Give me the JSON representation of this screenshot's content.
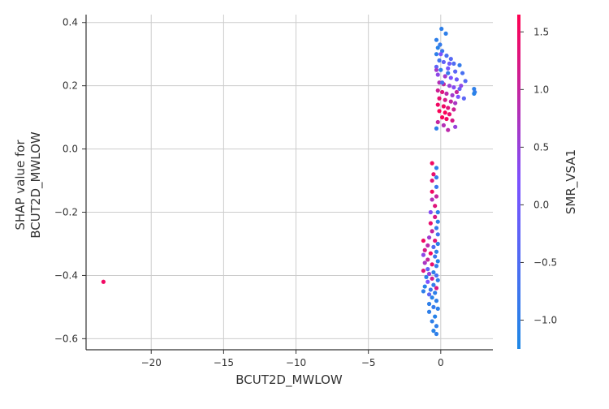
{
  "chart_data": {
    "type": "scatter",
    "title": "",
    "xlabel": "BCUT2D_MWLOW",
    "ylabel_lines": [
      "SHAP value for",
      "BCUT2D_MWLOW"
    ],
    "colorbar_label": "SMR_VSA1",
    "xlim": [
      -24.5,
      3.6
    ],
    "ylim": [
      -0.635,
      0.425
    ],
    "x_ticks": [
      -20,
      -15,
      -10,
      -5,
      0
    ],
    "x_tick_labels": [
      "−20",
      "−15",
      "−10",
      "−5",
      "0"
    ],
    "y_ticks": [
      0.4,
      0.2,
      0.0,
      -0.2,
      -0.4,
      -0.6
    ],
    "y_tick_labels": [
      "0.4",
      "0.2",
      "0.0",
      "−0.2",
      "−0.4",
      "−0.6"
    ],
    "color_range": [
      -1.25,
      1.65
    ],
    "colorbar_ticks": [
      1.5,
      1.0,
      0.5,
      0.0,
      -0.5,
      -1.0
    ],
    "colorbar_tick_labels": [
      "1.5",
      "1.0",
      "0.5",
      "0.0",
      "−0.5",
      "−1.0"
    ],
    "grid": true,
    "colors": {
      "low": "#1E88E5",
      "high": "#FF0051",
      "grid": "#cccccc",
      "axis": "#333333"
    },
    "points": [
      {
        "x": -23.3,
        "y": -0.42,
        "c": 1.5
      },
      {
        "x": 0.05,
        "y": 0.38,
        "c": -1.0
      },
      {
        "x": 0.35,
        "y": 0.365,
        "c": -1.0
      },
      {
        "x": -0.3,
        "y": 0.345,
        "c": -1.0
      },
      {
        "x": -0.05,
        "y": 0.33,
        "c": -0.9
      },
      {
        "x": -0.2,
        "y": 0.32,
        "c": -1.1
      },
      {
        "x": 0.1,
        "y": 0.31,
        "c": -0.8
      },
      {
        "x": -0.3,
        "y": 0.3,
        "c": -1.0
      },
      {
        "x": 0.4,
        "y": 0.295,
        "c": -0.6
      },
      {
        "x": 0.7,
        "y": 0.285,
        "c": -0.4
      },
      {
        "x": -0.1,
        "y": 0.28,
        "c": -0.7
      },
      {
        "x": 0.2,
        "y": 0.275,
        "c": -0.2
      },
      {
        "x": 0.9,
        "y": 0.27,
        "c": -0.5
      },
      {
        "x": 1.3,
        "y": 0.265,
        "c": -0.9
      },
      {
        "x": -0.3,
        "y": 0.26,
        "c": -0.3
      },
      {
        "x": 0.5,
        "y": 0.255,
        "c": 0.1
      },
      {
        "x": 0.0,
        "y": 0.25,
        "c": -1.0
      },
      {
        "x": 1.0,
        "y": 0.245,
        "c": -0.3
      },
      {
        "x": 1.5,
        "y": 0.24,
        "c": -0.6
      },
      {
        "x": -0.2,
        "y": 0.235,
        "c": 0.4
      },
      {
        "x": 0.3,
        "y": 0.23,
        "c": 0.6
      },
      {
        "x": 0.7,
        "y": 0.225,
        "c": 0.2
      },
      {
        "x": 1.1,
        "y": 0.22,
        "c": 0.0
      },
      {
        "x": 1.7,
        "y": 0.215,
        "c": -0.4
      },
      {
        "x": -0.1,
        "y": 0.21,
        "c": 0.8
      },
      {
        "x": 0.2,
        "y": 0.205,
        "c": 1.0
      },
      {
        "x": 0.6,
        "y": 0.2,
        "c": 0.5
      },
      {
        "x": 0.9,
        "y": 0.195,
        "c": 0.3
      },
      {
        "x": 1.3,
        "y": 0.19,
        "c": -0.2
      },
      {
        "x": 2.3,
        "y": 0.19,
        "c": -1.0
      },
      {
        "x": 2.35,
        "y": 0.18,
        "c": -0.9
      },
      {
        "x": 2.3,
        "y": 0.175,
        "c": -1.1
      },
      {
        "x": -0.2,
        "y": 0.185,
        "c": 1.1
      },
      {
        "x": 0.1,
        "y": 0.18,
        "c": 1.3
      },
      {
        "x": 0.4,
        "y": 0.175,
        "c": 0.9
      },
      {
        "x": 0.8,
        "y": 0.17,
        "c": 0.6
      },
      {
        "x": 1.2,
        "y": 0.165,
        "c": 0.2
      },
      {
        "x": 1.6,
        "y": 0.16,
        "c": -0.3
      },
      {
        "x": -0.1,
        "y": 0.16,
        "c": 1.4
      },
      {
        "x": 0.3,
        "y": 0.155,
        "c": 1.2
      },
      {
        "x": 0.7,
        "y": 0.15,
        "c": 1.0
      },
      {
        "x": 1.0,
        "y": 0.145,
        "c": 0.7
      },
      {
        "x": -0.2,
        "y": 0.14,
        "c": 1.5
      },
      {
        "x": 0.2,
        "y": 0.135,
        "c": 1.5
      },
      {
        "x": 0.5,
        "y": 0.13,
        "c": 1.3
      },
      {
        "x": 0.9,
        "y": 0.125,
        "c": 1.1
      },
      {
        "x": -0.1,
        "y": 0.12,
        "c": 1.6
      },
      {
        "x": 0.3,
        "y": 0.115,
        "c": 1.6
      },
      {
        "x": 0.6,
        "y": 0.11,
        "c": 1.4
      },
      {
        "x": 0.1,
        "y": 0.1,
        "c": 1.6
      },
      {
        "x": 0.4,
        "y": 0.095,
        "c": 1.5
      },
      {
        "x": 0.8,
        "y": 0.09,
        "c": 1.2
      },
      {
        "x": -0.2,
        "y": 0.085,
        "c": 1.0
      },
      {
        "x": 0.2,
        "y": 0.075,
        "c": 0.8
      },
      {
        "x": 1.0,
        "y": 0.07,
        "c": 0.5
      },
      {
        "x": -0.3,
        "y": 0.065,
        "c": -1.0
      },
      {
        "x": 0.5,
        "y": 0.06,
        "c": 0.9
      },
      {
        "x": 0.0,
        "y": 0.3,
        "c": 0.2
      },
      {
        "x": 0.5,
        "y": 0.24,
        "c": -0.9
      },
      {
        "x": 1.4,
        "y": 0.2,
        "c": 0.4
      },
      {
        "x": 0.1,
        "y": 0.21,
        "c": -0.6
      },
      {
        "x": -0.3,
        "y": 0.25,
        "c": 0.6
      },
      {
        "x": 0.6,
        "y": 0.27,
        "c": 0.0
      },
      {
        "x": 1.1,
        "y": 0.18,
        "c": 1.0
      },
      {
        "x": -0.6,
        "y": -0.045,
        "c": 1.5
      },
      {
        "x": -0.3,
        "y": -0.06,
        "c": -1.0
      },
      {
        "x": -0.5,
        "y": -0.08,
        "c": 1.4
      },
      {
        "x": -0.3,
        "y": -0.09,
        "c": -0.9
      },
      {
        "x": -0.6,
        "y": -0.1,
        "c": 1.3
      },
      {
        "x": -0.3,
        "y": -0.12,
        "c": -0.8
      },
      {
        "x": -0.6,
        "y": -0.135,
        "c": 1.5
      },
      {
        "x": -0.3,
        "y": -0.15,
        "c": 1.0
      },
      {
        "x": -0.6,
        "y": -0.16,
        "c": 0.8
      },
      {
        "x": -0.4,
        "y": -0.18,
        "c": 1.3
      },
      {
        "x": -0.2,
        "y": -0.2,
        "c": -1.0
      },
      {
        "x": -0.7,
        "y": -0.2,
        "c": 0.3
      },
      {
        "x": -0.4,
        "y": -0.215,
        "c": 1.2
      },
      {
        "x": -0.2,
        "y": -0.23,
        "c": -1.0
      },
      {
        "x": -0.7,
        "y": -0.235,
        "c": 1.4
      },
      {
        "x": -0.3,
        "y": -0.25,
        "c": -0.9
      },
      {
        "x": -0.6,
        "y": -0.26,
        "c": 1.0
      },
      {
        "x": -0.2,
        "y": -0.27,
        "c": -0.7
      },
      {
        "x": -0.8,
        "y": -0.28,
        "c": 0.6
      },
      {
        "x": -0.4,
        "y": -0.29,
        "c": 1.3
      },
      {
        "x": -1.2,
        "y": -0.29,
        "c": 1.5
      },
      {
        "x": -0.2,
        "y": -0.3,
        "c": -1.0
      },
      {
        "x": -0.9,
        "y": -0.305,
        "c": 0.9
      },
      {
        "x": -0.5,
        "y": -0.31,
        "c": -0.5
      },
      {
        "x": -1.1,
        "y": -0.32,
        "c": 1.2
      },
      {
        "x": -0.3,
        "y": -0.325,
        "c": -1.0
      },
      {
        "x": -0.7,
        "y": -0.33,
        "c": 1.5
      },
      {
        "x": -1.2,
        "y": -0.335,
        "c": 0.4
      },
      {
        "x": -0.4,
        "y": -0.34,
        "c": -0.8
      },
      {
        "x": -0.9,
        "y": -0.35,
        "c": 1.0
      },
      {
        "x": -0.2,
        "y": -0.355,
        "c": -1.1
      },
      {
        "x": -1.1,
        "y": -0.36,
        "c": 0.7
      },
      {
        "x": -0.6,
        "y": -0.365,
        "c": 1.4
      },
      {
        "x": -0.3,
        "y": -0.37,
        "c": -0.9
      },
      {
        "x": -0.9,
        "y": -0.38,
        "c": -0.2
      },
      {
        "x": -1.2,
        "y": -0.385,
        "c": 1.3
      },
      {
        "x": -0.5,
        "y": -0.39,
        "c": -1.0
      },
      {
        "x": -0.8,
        "y": -0.395,
        "c": 0.5
      },
      {
        "x": -0.3,
        "y": -0.4,
        "c": -0.6
      },
      {
        "x": -1.0,
        "y": -0.405,
        "c": -1.0
      },
      {
        "x": -0.6,
        "y": -0.41,
        "c": 1.1
      },
      {
        "x": -0.2,
        "y": -0.415,
        "c": -1.0
      },
      {
        "x": -0.9,
        "y": -0.42,
        "c": 0.2
      },
      {
        "x": -0.5,
        "y": -0.43,
        "c": -0.9
      },
      {
        "x": -1.1,
        "y": -0.435,
        "c": -1.1
      },
      {
        "x": -0.3,
        "y": -0.44,
        "c": 1.2
      },
      {
        "x": -0.7,
        "y": -0.445,
        "c": -0.8
      },
      {
        "x": -1.2,
        "y": -0.45,
        "c": -1.0
      },
      {
        "x": -0.4,
        "y": -0.455,
        "c": -1.0
      },
      {
        "x": -0.8,
        "y": -0.46,
        "c": -0.3
      },
      {
        "x": -0.6,
        "y": -0.47,
        "c": -1.1
      },
      {
        "x": -0.3,
        "y": -0.48,
        "c": -1.0
      },
      {
        "x": -0.8,
        "y": -0.49,
        "c": -1.0
      },
      {
        "x": -0.5,
        "y": -0.5,
        "c": -0.9
      },
      {
        "x": -0.2,
        "y": -0.505,
        "c": -1.0
      },
      {
        "x": -0.8,
        "y": -0.515,
        "c": -1.0
      },
      {
        "x": -0.4,
        "y": -0.53,
        "c": -1.1
      },
      {
        "x": -0.6,
        "y": -0.545,
        "c": -1.0
      },
      {
        "x": -0.3,
        "y": -0.56,
        "c": -1.0
      },
      {
        "x": -0.5,
        "y": -0.575,
        "c": -1.1
      },
      {
        "x": -0.3,
        "y": -0.585,
        "c": -1.0
      }
    ]
  }
}
